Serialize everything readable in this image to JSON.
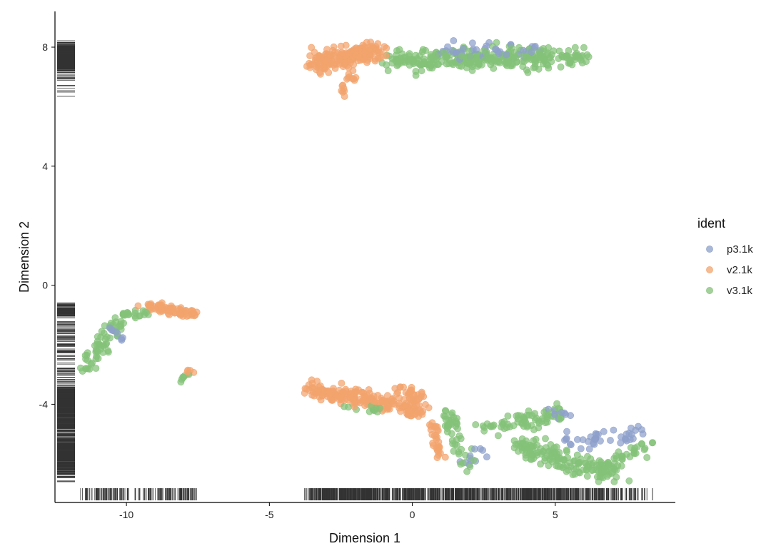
{
  "chart_data": {
    "type": "scatter",
    "title": "",
    "xlabel": "Dimension 1",
    "ylabel": "Dimension 2",
    "xlim": [
      -12.5,
      9.2
    ],
    "ylim": [
      -7.3,
      9.2
    ],
    "xticks": [
      -10,
      -5,
      0,
      5
    ],
    "yticks": [
      -4,
      0,
      4,
      8
    ],
    "grid": false,
    "legend": {
      "title": "ident",
      "placement": "right"
    },
    "rug": true,
    "series": [
      {
        "name": "p3.1k",
        "color": "#8DA0CB",
        "clusters": [
          {
            "from": [
              1.0,
              7.85
            ],
            "to": [
              4.5,
              7.8
            ],
            "spread": 0.18,
            "count": 45
          },
          {
            "from": [
              -10.6,
              -1.6
            ],
            "to": [
              -10.0,
              -1.7
            ],
            "spread": 0.15,
            "count": 10
          },
          {
            "from": [
              1.5,
              -6.0
            ],
            "to": [
              2.5,
              -5.5
            ],
            "spread": 0.2,
            "count": 10
          },
          {
            "from": [
              5.3,
              -5.3
            ],
            "to": [
              8.0,
              -5.0
            ],
            "spread": 0.2,
            "count": 40
          },
          {
            "from": [
              4.7,
              -4.2
            ],
            "to": [
              5.4,
              -4.4
            ],
            "spread": 0.15,
            "count": 8
          }
        ]
      },
      {
        "name": "v2.1k",
        "color": "#F2A46E",
        "clusters": [
          {
            "from": [
              -3.5,
              7.4
            ],
            "to": [
              -1.2,
              7.9
            ],
            "spread": 0.22,
            "count": 190
          },
          {
            "from": [
              -2.0,
              7.1
            ],
            "to": [
              -2.4,
              6.5
            ],
            "spread": 0.1,
            "count": 16
          },
          {
            "from": [
              -9.3,
              -0.7
            ],
            "to": [
              -7.6,
              -0.95
            ],
            "spread": 0.11,
            "count": 75
          },
          {
            "from": [
              -3.6,
              -3.5
            ],
            "to": [
              0.3,
              -4.2
            ],
            "spread": 0.17,
            "count": 210
          },
          {
            "from": [
              -0.6,
              -3.4
            ],
            "to": [
              0.4,
              -4.0
            ],
            "spread": 0.16,
            "count": 35
          },
          {
            "from": [
              0.7,
              -4.5
            ],
            "to": [
              1.0,
              -5.9
            ],
            "spread": 0.11,
            "count": 30
          },
          {
            "from": [
              -7.9,
              -2.85
            ],
            "to": [
              -7.7,
              -3.0
            ],
            "spread": 0.05,
            "count": 5
          }
        ]
      },
      {
        "name": "v3.1k",
        "color": "#84C278",
        "clusters": [
          {
            "from": [
              -0.9,
              7.55
            ],
            "to": [
              6.0,
              7.65
            ],
            "spread": 0.22,
            "count": 300
          },
          {
            "from": [
              -11.5,
              -2.9
            ],
            "to": [
              -10.2,
              -1.1
            ],
            "spread": 0.16,
            "count": 60
          },
          {
            "from": [
              -10.2,
              -1.0
            ],
            "to": [
              -9.1,
              -0.9
            ],
            "spread": 0.1,
            "count": 20
          },
          {
            "from": [
              -7.9,
              -3.0
            ],
            "to": [
              -8.1,
              -3.2
            ],
            "spread": 0.06,
            "count": 6
          },
          {
            "from": [
              1.2,
              -4.2
            ],
            "to": [
              1.9,
              -6.3
            ],
            "spread": 0.14,
            "count": 45
          },
          {
            "from": [
              2.5,
              -4.8
            ],
            "to": [
              5.2,
              -4.3
            ],
            "spread": 0.17,
            "count": 70
          },
          {
            "from": [
              3.7,
              -5.4
            ],
            "to": [
              7.0,
              -6.4
            ],
            "spread": 0.22,
            "count": 150
          },
          {
            "from": [
              6.6,
              -6.2
            ],
            "to": [
              8.3,
              -5.3
            ],
            "spread": 0.2,
            "count": 40
          },
          {
            "from": [
              -2.5,
              -4.1
            ],
            "to": [
              -1.0,
              -4.2
            ],
            "spread": 0.1,
            "count": 12
          }
        ]
      }
    ]
  }
}
